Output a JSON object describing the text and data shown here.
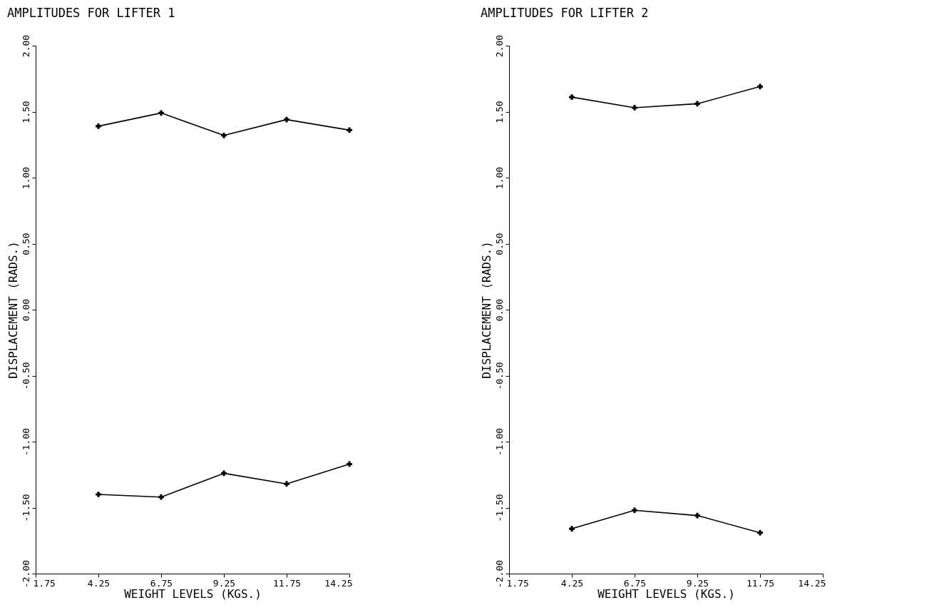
{
  "chart_data": [
    {
      "type": "line",
      "title": "AMPLITUDES FOR LIFTER  1",
      "xlabel": "WEIGHT LEVELS (KGS.)",
      "ylabel": "DISPLACEMENT (RADS.)",
      "x": [
        4.25,
        6.75,
        9.25,
        11.75,
        14.25
      ],
      "series": [
        {
          "color": "#000000",
          "values": [
            1.39,
            1.49,
            1.32,
            1.44,
            1.36
          ]
        },
        {
          "color": "#000000",
          "values": [
            -1.4,
            -1.42,
            -1.24,
            -1.32,
            -1.17
          ]
        }
      ],
      "xlim": [
        1.75,
        14.25
      ],
      "xticks": [
        1.75,
        4.25,
        6.75,
        9.25,
        11.75,
        14.25
      ],
      "ylim": [
        -2,
        2
      ],
      "yticks": [
        {
          "value": -2,
          "label": "-2.00"
        },
        {
          "value": -1.5,
          "label": "-1.50"
        },
        {
          "value": -1,
          "label": "-1.00"
        },
        {
          "value": -0.5,
          "label": "-0.50"
        },
        {
          "value": 0,
          "label": "0.00"
        },
        {
          "value": 0.5,
          "label": "0.50"
        },
        {
          "value": 1,
          "label": "1.00"
        },
        {
          "value": 1.5,
          "label": "1.50"
        },
        {
          "value": 2,
          "label": "2.00"
        }
      ],
      "grid": false,
      "marker": "cross",
      "line_style": "solid"
    },
    {
      "type": "line",
      "title": "AMPLITUDES FOR LIFTER  2",
      "xlabel": "WEIGHT LEVELS (KGS.)",
      "ylabel": "DISPLACEMENT (RADS.)",
      "x": [
        4.25,
        6.75,
        9.25,
        11.75
      ],
      "series": [
        {
          "color": "#000000",
          "values": [
            1.61,
            1.53,
            1.56,
            1.69
          ]
        },
        {
          "color": "#000000",
          "values": [
            -1.66,
            -1.52,
            -1.56,
            -1.69
          ]
        }
      ],
      "xlim": [
        1.75,
        14.25
      ],
      "xticks": [
        1.75,
        4.25,
        6.75,
        9.25,
        11.75,
        14.25
      ],
      "ylim": [
        -2,
        2
      ],
      "yticks": [
        {
          "value": -2,
          "label": "-2.00"
        },
        {
          "value": -1.5,
          "label": "-1.50"
        },
        {
          "value": -1,
          "label": "-1.00"
        },
        {
          "value": -0.5,
          "label": "-0.50"
        },
        {
          "value": 0,
          "label": "0.00"
        },
        {
          "value": 0.5,
          "label": "0.50"
        },
        {
          "value": 1,
          "label": "1.00"
        },
        {
          "value": 1.5,
          "label": "1.50"
        },
        {
          "value": 2,
          "label": "2.00"
        }
      ],
      "grid": false,
      "marker": "cross",
      "line_style": "solid"
    }
  ]
}
